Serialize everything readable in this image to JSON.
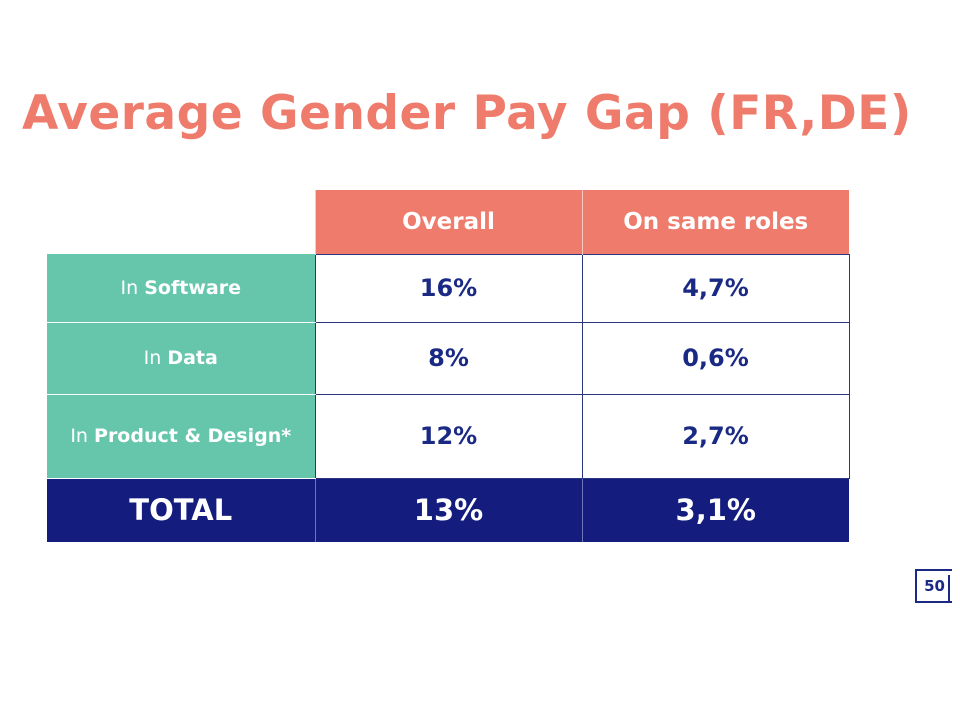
{
  "title": "Average Gender Pay Gap (FR,DE)",
  "chart_data": {
    "type": "table",
    "title": "Average Gender Pay Gap (FR,DE)",
    "columns": [
      "Overall",
      "On same roles"
    ],
    "rows": [
      {
        "prefix": "In",
        "name": "Software",
        "values": [
          "16%",
          "4,7%"
        ]
      },
      {
        "prefix": "In",
        "name": "Data",
        "values": [
          "8%",
          "0,6%"
        ]
      },
      {
        "prefix": "In",
        "name": "Product & Design*",
        "values": [
          "12%",
          "2,7%"
        ]
      }
    ],
    "total": {
      "label": "TOTAL",
      "values": [
        "13%",
        "3,1%"
      ]
    }
  },
  "logo": {
    "text": "50"
  },
  "colors": {
    "title": "#ee7b6b",
    "header": "#ee7b6b",
    "row_label": "#66c6ac",
    "total": "#141c7e",
    "value_text": "#1a2a84"
  }
}
